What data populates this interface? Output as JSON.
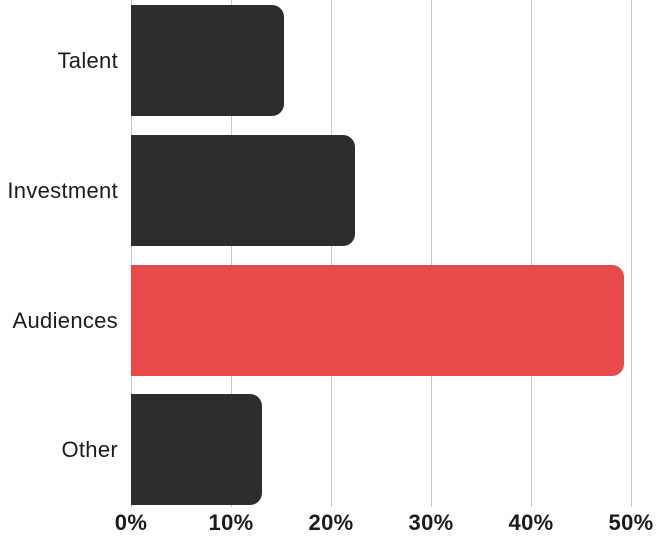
{
  "chart_data": {
    "type": "bar",
    "orientation": "horizontal",
    "title": "",
    "xlabel": "",
    "ylabel": "",
    "categories": [
      "Talent",
      "Investment",
      "Audiences",
      "Other"
    ],
    "values": [
      15.3,
      22.4,
      49.3,
      13.1
    ],
    "value_unit": "%",
    "bar_colors": [
      "#2d2d2d",
      "#2d2d2d",
      "#e8494b",
      "#2d2d2d"
    ],
    "highlighted_category": "Audiences",
    "x_ticks": [
      {
        "label": "0%",
        "value": 0
      },
      {
        "label": "10%",
        "value": 10
      },
      {
        "label": "20%",
        "value": 20
      },
      {
        "label": "30%",
        "value": 30
      },
      {
        "label": "40%",
        "value": 40
      },
      {
        "label": "50%",
        "value": 50
      }
    ],
    "xlim": [
      0,
      50
    ],
    "grid": {
      "vertical": true,
      "horizontal": false,
      "color": "#c9c9c9"
    },
    "legend": "none",
    "colors": {
      "bar_default": "#2d2d2d",
      "bar_highlight": "#e8494b",
      "gridline": "#c9c9c9",
      "text": "#1b1b1b",
      "background": "#ffffff"
    }
  }
}
